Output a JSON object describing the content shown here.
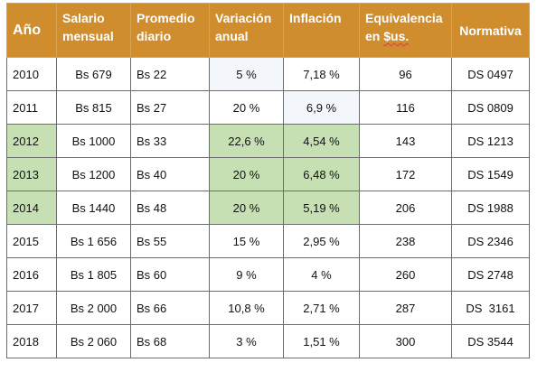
{
  "header": {
    "anio": "Año",
    "salario_l1": "Salario",
    "salario_l2": "mensual",
    "promedio_l1": "Promedio",
    "promedio_l2": "diario",
    "variacion_l1": "Variación",
    "variacion_l2": "anual",
    "inflacion": "Inflación",
    "equivalencia_l1": "Equivalencia",
    "equivalencia_l2_a": "en ",
    "equivalencia_l2_b": "$us.",
    "normativa": "Normativa"
  },
  "rows": [
    {
      "anio": "2010",
      "salario": "Bs 679",
      "promedio": "Bs 22",
      "variacion": "5 %",
      "inflacion": "7,18 %",
      "equivalencia": "96",
      "normativa": "DS 0497"
    },
    {
      "anio": "2011",
      "salario": "Bs 815",
      "promedio": "Bs 27",
      "variacion": "20 %",
      "inflacion": "6,9 %",
      "equivalencia": "116",
      "normativa": "DS 0809"
    },
    {
      "anio": "2012",
      "salario": "Bs 1000",
      "promedio": "Bs 33",
      "variacion": "22,6 %",
      "inflacion": "4,54 %",
      "equivalencia": "143",
      "normativa": "DS 1213"
    },
    {
      "anio": "2013",
      "salario": "Bs 1200",
      "promedio": "Bs 40",
      "variacion": "20 %",
      "inflacion": "6,48 %",
      "equivalencia": "172",
      "normativa": "DS 1549"
    },
    {
      "anio": "2014",
      "salario": "Bs 1440",
      "promedio": "Bs 48",
      "variacion": "20 %",
      "inflacion": "5,19 %",
      "equivalencia": "206",
      "normativa": "DS 1988"
    },
    {
      "anio": "2015",
      "salario": "Bs 1 656",
      "promedio": "Bs 55",
      "variacion": "15 %",
      "inflacion": "2,95 %",
      "equivalencia": "238",
      "normativa": "DS 2346"
    },
    {
      "anio": "2016",
      "salario": "Bs 1 805",
      "promedio": "Bs 60",
      "variacion": "9 %",
      "inflacion": "4 %",
      "equivalencia": "260",
      "normativa": "DS 2748"
    },
    {
      "anio": "2017",
      "salario": "Bs 2 000",
      "promedio": "Bs 66",
      "variacion": "10,8 %",
      "inflacion": "2,71 %",
      "equivalencia": "287",
      "normativa": "DS  3161"
    },
    {
      "anio": "2018",
      "salario": "Bs 2 060",
      "promedio": "Bs 68",
      "variacion": "3 %",
      "inflacion": "1,51 %",
      "equivalencia": "300",
      "normativa": "DS 3544"
    }
  ],
  "colors": {
    "header_bg": "#cf8d2e",
    "highlight_green": "#c6e0b4"
  }
}
